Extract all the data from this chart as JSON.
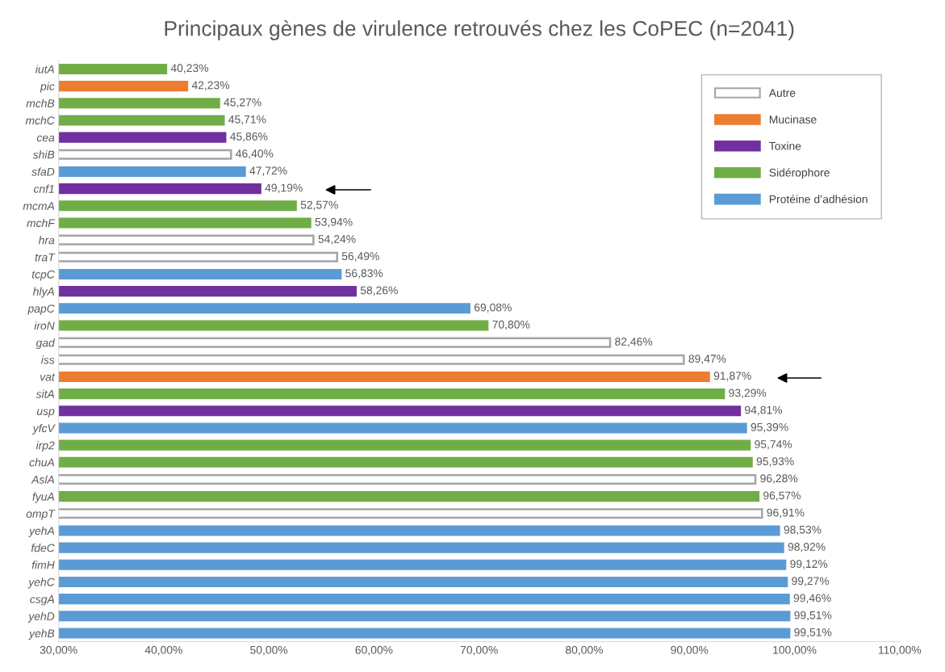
{
  "chart_data": {
    "type": "bar",
    "orientation": "horizontal",
    "title": "Principaux gènes de virulence retrouvés chez les CoPEC (n=2041)",
    "categories": [
      "iutA",
      "pic",
      "mchB",
      "mchC",
      "cea",
      "shiB",
      "sfaD",
      "cnf1",
      "mcmA",
      "mchF",
      "hra",
      "traT",
      "tcpC",
      "hlyA",
      "papC",
      "iroN",
      "gad",
      "iss",
      "vat",
      "sitA",
      "usp",
      "yfcV",
      "irp2",
      "chuA",
      "AslA",
      "fyuA",
      "ompT",
      "yehA",
      "fdeC",
      "fimH",
      "yehC",
      "csgA",
      "yehD",
      "yehB"
    ],
    "series": [
      {
        "name": "Autre",
        "color": "#ffffff",
        "values": [
          null,
          null,
          null,
          null,
          null,
          46.4,
          null,
          null,
          null,
          null,
          54.24,
          56.49,
          null,
          null,
          null,
          null,
          82.46,
          89.47,
          null,
          null,
          null,
          null,
          null,
          null,
          96.28,
          null,
          96.91,
          null,
          null,
          null,
          null,
          null,
          null,
          null
        ]
      },
      {
        "name": "Mucinase",
        "color": "#ed7d31",
        "values": [
          null,
          42.23,
          null,
          null,
          null,
          null,
          null,
          null,
          null,
          null,
          null,
          null,
          null,
          null,
          null,
          null,
          null,
          null,
          91.87,
          null,
          null,
          null,
          null,
          null,
          null,
          null,
          null,
          null,
          null,
          null,
          null,
          null,
          null,
          null
        ]
      },
      {
        "name": "Toxine",
        "color": "#7030a0",
        "values": [
          null,
          null,
          null,
          null,
          45.86,
          null,
          null,
          49.19,
          null,
          null,
          null,
          null,
          null,
          58.26,
          null,
          null,
          null,
          null,
          null,
          null,
          94.81,
          null,
          null,
          null,
          null,
          null,
          null,
          null,
          null,
          null,
          null,
          null,
          null,
          null
        ]
      },
      {
        "name": "Sidérophore",
        "color": "#70ad47",
        "values": [
          40.23,
          null,
          45.27,
          45.71,
          null,
          null,
          null,
          null,
          52.57,
          53.94,
          null,
          null,
          null,
          null,
          null,
          70.8,
          null,
          null,
          null,
          93.29,
          null,
          null,
          95.74,
          95.93,
          null,
          96.57,
          null,
          null,
          null,
          null,
          null,
          null,
          null,
          null
        ]
      },
      {
        "name": "Protéine d’adhésion",
        "color": "#5b9bd5",
        "values": [
          null,
          null,
          null,
          null,
          null,
          null,
          47.72,
          null,
          null,
          null,
          null,
          null,
          56.83,
          null,
          69.08,
          null,
          null,
          null,
          null,
          null,
          null,
          95.39,
          null,
          null,
          null,
          null,
          null,
          98.53,
          98.92,
          99.12,
          99.27,
          99.46,
          99.51,
          99.51
        ]
      }
    ],
    "value_labels": [
      "40,23%",
      "42,23%",
      "45,27%",
      "45,71%",
      "45,86%",
      "46,40%",
      "47,72%",
      "49,19%",
      "52,57%",
      "53,94%",
      "54,24%",
      "56,49%",
      "56,83%",
      "58,26%",
      "69,08%",
      "70,80%",
      "82,46%",
      "89,47%",
      "91,87%",
      "93,29%",
      "94,81%",
      "95,39%",
      "95,74%",
      "95,93%",
      "96,28%",
      "96,57%",
      "96,91%",
      "98,53%",
      "98,92%",
      "99,12%",
      "99,27%",
      "99,46%",
      "99,51%",
      "99,51%"
    ],
    "xlim": [
      30,
      110
    ],
    "xticks": [
      {
        "value": 30,
        "label": "30,00%"
      },
      {
        "value": 40,
        "label": "40,00%"
      },
      {
        "value": 50,
        "label": "50,00%"
      },
      {
        "value": 60,
        "label": "60,00%"
      },
      {
        "value": 70,
        "label": "70,00%"
      },
      {
        "value": 80,
        "label": "80,00%"
      },
      {
        "value": 90,
        "label": "90,00%"
      },
      {
        "value": 100,
        "label": "100,00%"
      },
      {
        "value": 110,
        "label": "110,00%"
      }
    ],
    "legend": "top right",
    "grid": false
  }
}
